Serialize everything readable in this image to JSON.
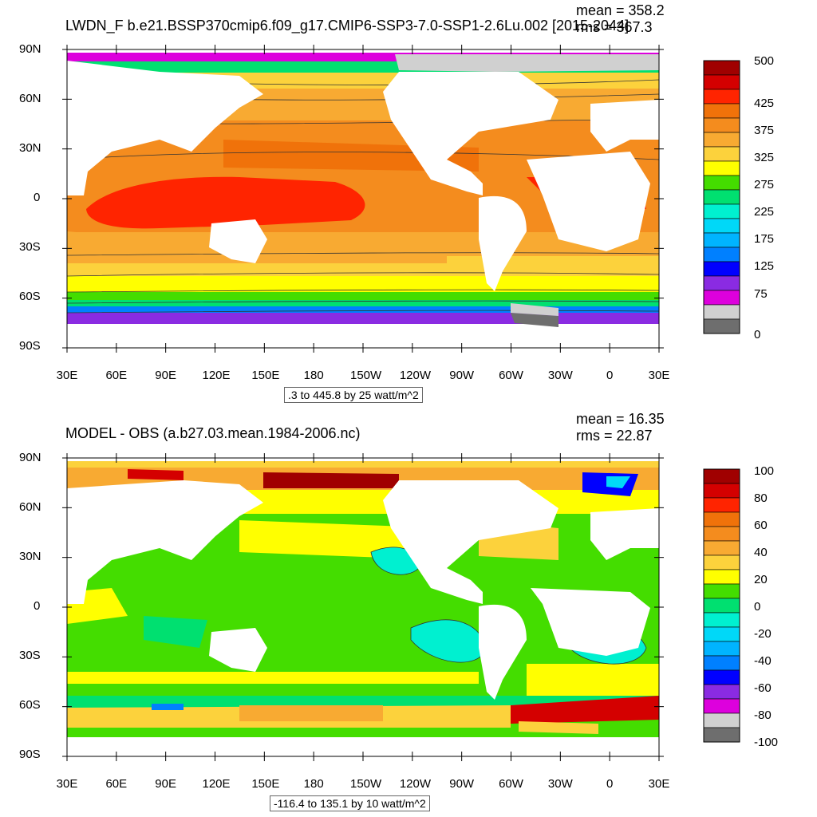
{
  "panels": [
    {
      "title": "LWDN_F b.e21.BSSP370cmip6.f09_g17.CMIP6-SSP3-7.0-SSP1-2.6Lu.002 [2015-2044]",
      "mean_text": "mean = 358.2",
      "rms_text": "rms = 367.3",
      "range_text": ".3 to 445.8 by 25 watt/m^2",
      "lat_labels": [
        "90N",
        "60N",
        "30N",
        "0",
        "30S",
        "60S",
        "90S"
      ],
      "lon_labels": [
        "30E",
        "60E",
        "90E",
        "120E",
        "150E",
        "180",
        "150W",
        "120W",
        "90W",
        "60W",
        "30W",
        "0",
        "30E"
      ],
      "colorbar_labels": [
        "500",
        "425",
        "375",
        "325",
        "275",
        "225",
        "175",
        "125",
        "75",
        "0"
      ],
      "colorbar_colors": [
        "#a00000",
        "#d40000",
        "#ff2400",
        "#f0720a",
        "#f48c1e",
        "#f8aa32",
        "#fcd23c",
        "#ffff00",
        "#44dd00",
        "#00e070",
        "#00f0d0",
        "#00d8f8",
        "#00b4ff",
        "#0080ff",
        "#0000ff",
        "#8a2be2",
        "#dd00dd",
        "#d0d0d0",
        "#6e6e6e"
      ]
    },
    {
      "title": "MODEL - OBS (a.b27.03.mean.1984-2006.nc)",
      "mean_text": "mean = 16.35",
      "rms_text": "rms = 22.87",
      "range_text": "-116.4 to 135.1 by 10 watt/m^2",
      "lat_labels": [
        "90N",
        "60N",
        "30N",
        "0",
        "30S",
        "60S",
        "90S"
      ],
      "lon_labels": [
        "30E",
        "60E",
        "90E",
        "120E",
        "150E",
        "180",
        "150W",
        "120W",
        "90W",
        "60W",
        "30W",
        "0",
        "30E"
      ],
      "colorbar_labels": [
        "100",
        "80",
        "60",
        "40",
        "20",
        "0",
        "-20",
        "-40",
        "-60",
        "-80",
        "-100"
      ],
      "colorbar_colors": [
        "#a00000",
        "#d40000",
        "#ff2400",
        "#f0720a",
        "#f48c1e",
        "#f8aa32",
        "#fcd23c",
        "#ffff00",
        "#44dd00",
        "#00e070",
        "#00f0d0",
        "#00d8f8",
        "#00b4ff",
        "#0080ff",
        "#0000ff",
        "#8a2be2",
        "#dd00dd",
        "#d0d0d0",
        "#6e6e6e"
      ]
    }
  ]
}
